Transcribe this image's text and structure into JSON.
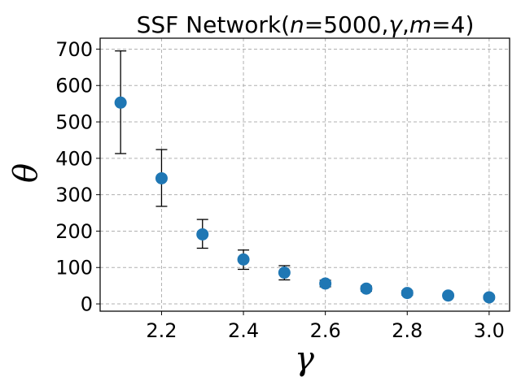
{
  "chart_data": {
    "type": "scatter",
    "title_prefix": "SSF Network(",
    "title_params": [
      {
        "symbol": "n",
        "value": "5000"
      },
      {
        "symbol": "γ",
        "value": ""
      },
      {
        "symbol": "m",
        "value": "4"
      }
    ],
    "title_suffix": ")",
    "xlabel": "γ",
    "ylabel": "θ",
    "x": [
      2.1,
      2.2,
      2.3,
      2.4,
      2.5,
      2.6,
      2.7,
      2.8,
      2.9,
      3.0
    ],
    "y": [
      553,
      345,
      191,
      122,
      86,
      56,
      42,
      30,
      23,
      18
    ],
    "yerr_low": [
      413,
      268,
      153,
      95,
      66,
      47,
      35,
      24,
      19,
      13
    ],
    "yerr_high": [
      695,
      424,
      232,
      148,
      105,
      65,
      49,
      36,
      27,
      23
    ],
    "xlim": [
      2.05,
      3.05
    ],
    "ylim": [
      -20,
      730
    ],
    "xticks": [
      "2.2",
      "2.4",
      "2.6",
      "2.8",
      "3.0"
    ],
    "yticks": [
      "0",
      "100",
      "200",
      "300",
      "400",
      "500",
      "600",
      "700"
    ],
    "grid": true,
    "marker_color": "#1f77b4",
    "errorbar_color": "#000000"
  }
}
